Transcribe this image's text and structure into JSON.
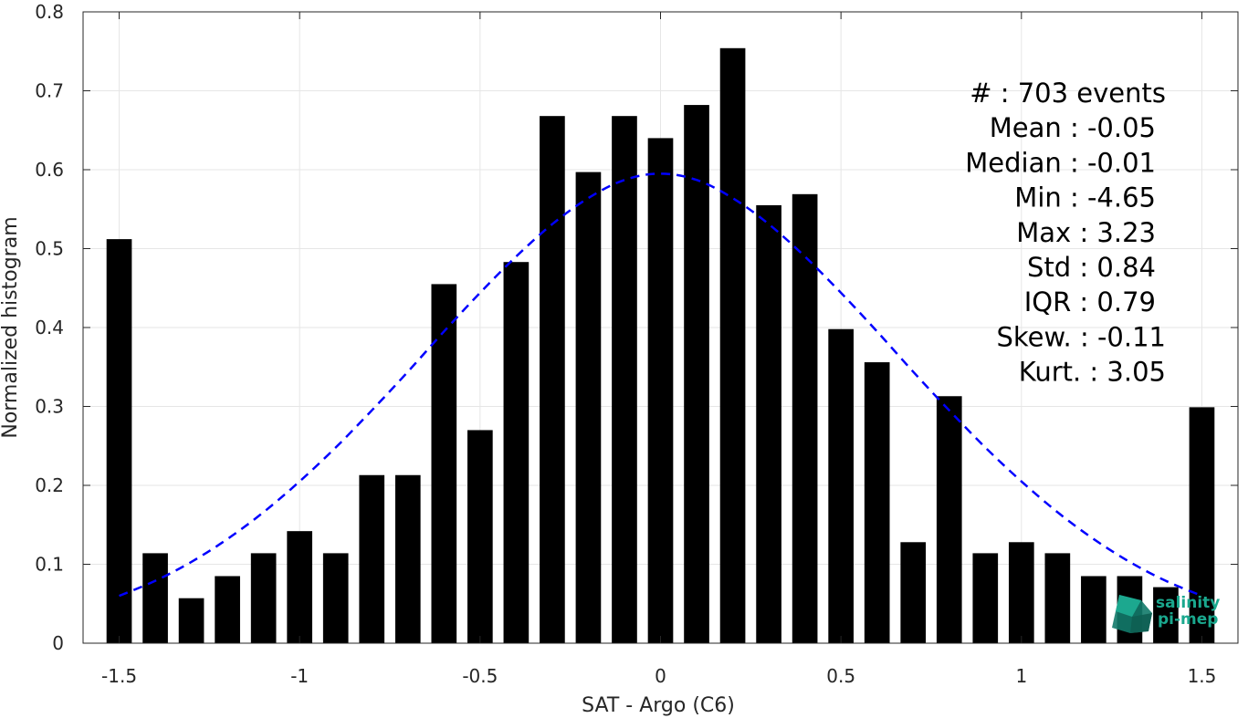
{
  "chart_data": {
    "type": "bar",
    "xlabel": "SAT - Argo (C6)",
    "ylabel": "Normalized histogram",
    "xlim": [
      -1.6,
      1.6
    ],
    "ylim": [
      0,
      0.8
    ],
    "grid": true,
    "x_ticks": [
      "-1.5",
      "-1",
      "-0.5",
      "0",
      "0.5",
      "1",
      "1.5"
    ],
    "x_tick_values": [
      -1.5,
      -1,
      -0.5,
      0,
      0.5,
      1,
      1.5
    ],
    "y_ticks": [
      "0",
      "0.1",
      "0.2",
      "0.3",
      "0.4",
      "0.5",
      "0.6",
      "0.7",
      "0.8"
    ],
    "y_tick_values": [
      0,
      0.1,
      0.2,
      0.3,
      0.4,
      0.5,
      0.6,
      0.7,
      0.8
    ],
    "bar_width": 0.07,
    "x": [
      -1.5,
      -1.4,
      -1.3,
      -1.2,
      -1.1,
      -1.0,
      -0.9,
      -0.8,
      -0.7,
      -0.6,
      -0.5,
      -0.4,
      -0.3,
      -0.2,
      -0.1,
      0.0,
      0.1,
      0.2,
      0.3,
      0.4,
      0.5,
      0.6,
      0.7,
      0.8,
      0.9,
      1.0,
      1.1,
      1.2,
      1.3,
      1.4,
      1.5
    ],
    "values": [
      0.512,
      0.114,
      0.057,
      0.085,
      0.114,
      0.142,
      0.114,
      0.213,
      0.213,
      0.455,
      0.27,
      0.483,
      0.668,
      0.597,
      0.668,
      0.64,
      0.682,
      0.754,
      0.555,
      0.569,
      0.398,
      0.356,
      0.128,
      0.313,
      0.114,
      0.128,
      0.114,
      0.085,
      0.085,
      0.071,
      0.299
    ],
    "bar_color": "#000000",
    "fit": {
      "type": "gaussian",
      "color": "#0000ff",
      "style": "dashed",
      "x": [
        -1.5,
        -1.4,
        -1.3,
        -1.2,
        -1.1,
        -1.0,
        -0.9,
        -0.8,
        -0.7,
        -0.6,
        -0.5,
        -0.4,
        -0.3,
        -0.2,
        -0.1,
        0.0,
        0.1,
        0.2,
        0.3,
        0.4,
        0.5,
        0.6,
        0.7,
        0.8,
        0.9,
        1.0,
        1.1,
        1.2,
        1.3,
        1.4,
        1.5
      ],
      "y": [
        0.06,
        0.079,
        0.103,
        0.132,
        0.166,
        0.205,
        0.248,
        0.295,
        0.344,
        0.395,
        0.444,
        0.49,
        0.531,
        0.564,
        0.587,
        0.595,
        0.587,
        0.564,
        0.531,
        0.49,
        0.444,
        0.395,
        0.344,
        0.295,
        0.248,
        0.205,
        0.166,
        0.132,
        0.103,
        0.079,
        0.06
      ]
    },
    "stats_lines": [
      "#  : 703 events",
      "Mean : -0.05",
      "Median : -0.01",
      "Min : -4.65",
      "Max : 3.23",
      "Std : 0.84",
      "IQR : 0.79",
      "Skew. : -0.11",
      "Kurt. : 3.05"
    ],
    "stats_align": [
      "1277",
      "1266",
      "1266",
      "1266",
      "1266",
      "1266",
      "1266",
      "1277",
      "1277"
    ]
  },
  "logo": {
    "line1": "salinity",
    "line2": "pi-mep",
    "color": "#1aa88e"
  }
}
